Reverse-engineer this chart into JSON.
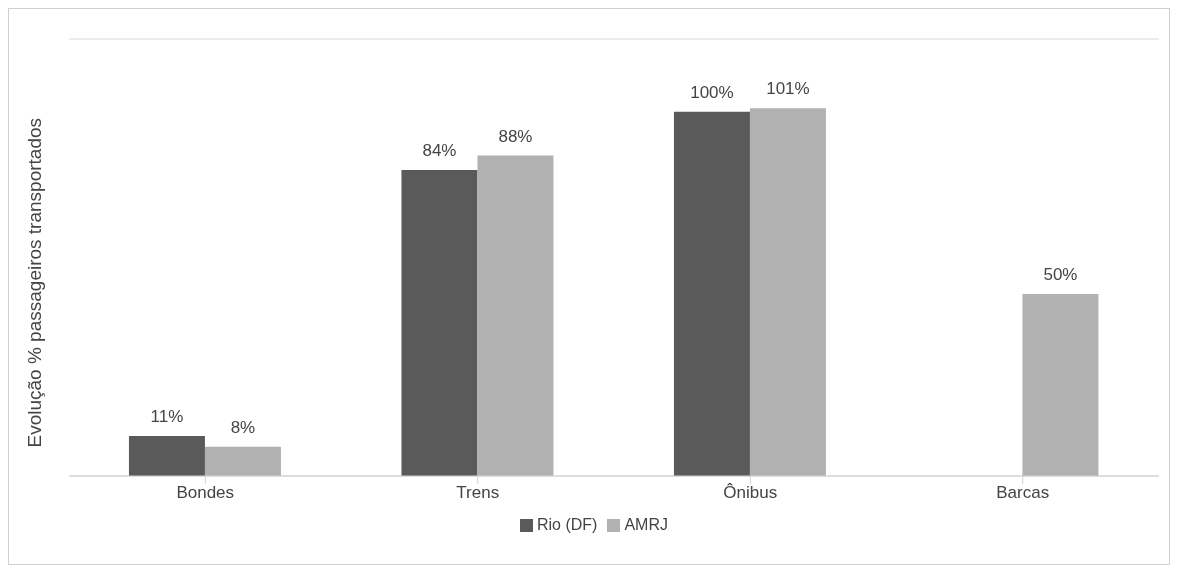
{
  "chart_data": {
    "type": "bar",
    "ylabel": "Evolução % passageiros transportados",
    "categories": [
      "Bondes",
      "Trens",
      "Ônibus",
      "Barcas"
    ],
    "series": [
      {
        "name": "Rio (DF)",
        "color": "#5a5a5a",
        "values": [
          11,
          84,
          100,
          null
        ],
        "value_labels": [
          "11%",
          "84%",
          "100%",
          null
        ]
      },
      {
        "name": "AMRJ",
        "color": "#b1b1b1",
        "values": [
          8,
          88,
          101,
          50
        ],
        "value_labels": [
          "8%",
          "88%",
          "101%",
          "50%"
        ]
      }
    ],
    "ylim": [
      0,
      120
    ],
    "tick_labels": "x",
    "grid": "y",
    "legend": "bottom"
  }
}
